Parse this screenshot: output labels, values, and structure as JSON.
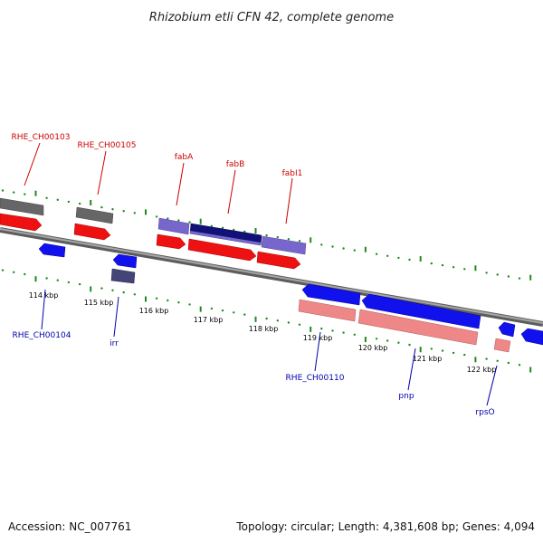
{
  "title": "Rhizobium etli CFN 42, complete genome",
  "footer": {
    "accession": "Accession: NC_007761",
    "topology": "Topology: circular; Length: 4,381,608 bp; Genes: 4,094"
  },
  "colors": {
    "backbone": "#8a8a8a",
    "tick": "#1f8a1f",
    "label_top": "#cc0000",
    "label_bottom": "#0000aa",
    "gene_red": "#ee1111",
    "gene_blue": "#1111ee",
    "gene_gray": "#666666",
    "gene_violet": "#7766cc",
    "gene_navy": "#111177",
    "gene_pink": "#ee8888",
    "gene_slate": "#444477"
  },
  "scale_labels": [
    "114 kbp",
    "115 kbp",
    "116 kbp",
    "117 kbp",
    "118 kbp",
    "119 kbp",
    "120 kbp",
    "121 kbp",
    "122 kbp"
  ],
  "labels_top": [
    "RHE_CH00103",
    "RHE_CH00105",
    "fabA",
    "fabB",
    "fabI1"
  ],
  "labels_bottom": [
    "RHE_CH00104",
    "irr",
    "RHE_CH00110",
    "pnp",
    "rpsO"
  ]
}
